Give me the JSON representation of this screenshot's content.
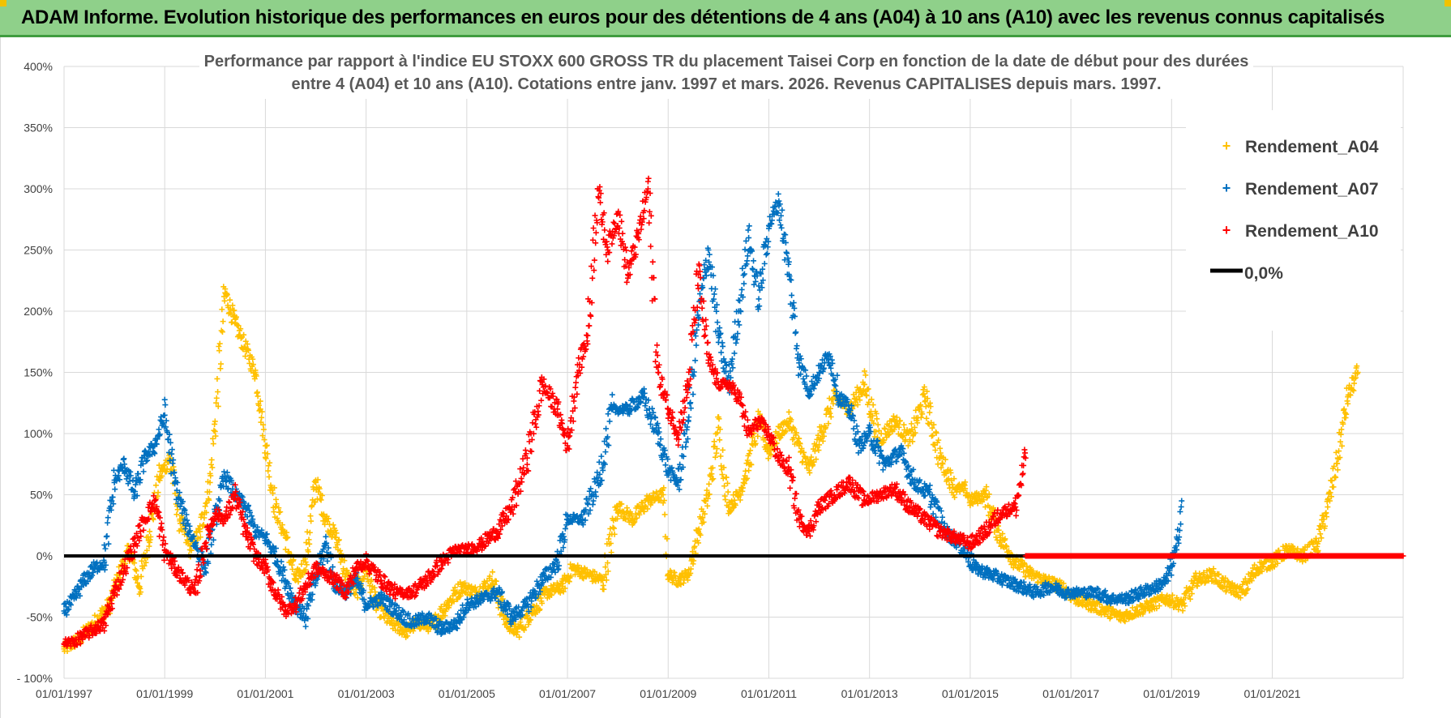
{
  "banner": {
    "title": "ADAM Informe. Evolution historique des performances en euros pour des détentions de 4 ans (A04) à 10 ans (A10) avec les revenus connus capitalisés"
  },
  "colors": {
    "banner_bg": "#8fd08a",
    "series_A04": "#ffc000",
    "series_A07": "#0070c0",
    "series_A10": "#ff0000",
    "zero_line": "#000000",
    "grid": "#d9d9d9"
  },
  "chart_data": {
    "type": "scatter",
    "title_lines": [
      "Performance par rapport à l'indice EU STOXX 600 GROSS TR  du placement Taisei Corp en fonction de la date de début pour des durées",
      "entre 4 (A04) et 10 ans (A10).  Cotations entre janv. 1997 et mars. 2026.  Revenus CAPITALISES depuis mars. 1997."
    ],
    "x_tick_labels": [
      "01/01/1997",
      "01/01/1999",
      "01/01/2001",
      "01/01/2003",
      "01/01/2005",
      "01/01/2007",
      "01/01/2009",
      "01/01/2011",
      "01/01/2013",
      "01/01/2015",
      "01/01/2017",
      "01/01/2019",
      "01/01/2021"
    ],
    "y_tick_labels": [
      "- 100%",
      "-50%",
      "0%",
      "50%",
      "100%",
      "150%",
      "200%",
      "250%",
      "300%",
      "350%",
      "400%"
    ],
    "xlim": [
      1997.0,
      2023.6
    ],
    "ylim": [
      -100,
      400
    ],
    "legend": {
      "placement": "top-right",
      "entries": [
        "Rendement_A04",
        "Rendement_A07",
        "Rendement_A10",
        "0,0%"
      ]
    },
    "series": [
      {
        "name": "Rendement_A04",
        "color": "#ffc000",
        "x": [
          1997.0,
          1997.3,
          1997.6,
          1997.9,
          1998.1,
          1998.3,
          1998.5,
          1998.7,
          1998.9,
          1999.1,
          1999.3,
          1999.5,
          1999.7,
          1999.9,
          2000.0,
          2000.2,
          2000.4,
          2000.6,
          2000.8,
          2000.9,
          2001.0,
          2001.2,
          2001.4,
          2001.6,
          2001.8,
          2002.0,
          2002.2,
          2002.4,
          2002.6,
          2002.8,
          2003.0,
          2003.2,
          2003.5,
          2003.8,
          2004.0,
          2004.3,
          2004.6,
          2004.9,
          2005.2,
          2005.5,
          2005.8,
          2006.0,
          2006.3,
          2006.6,
          2006.9,
          2007.1,
          2007.4,
          2007.7,
          2008.0,
          2008.3,
          2008.6,
          2008.9,
          2009.0,
          2009.2,
          2009.4,
          2009.6,
          2009.8,
          2010.0,
          2010.2,
          2010.4,
          2010.6,
          2010.8,
          2011.0,
          2011.2,
          2011.4,
          2011.6,
          2011.8,
          2012.0,
          2012.3,
          2012.6,
          2012.9,
          2013.2,
          2013.5,
          2013.8,
          2014.1,
          2014.4,
          2014.7,
          2014.9,
          2015.0,
          2015.3,
          2015.6,
          2015.9,
          2016.2,
          2016.5,
          2016.8,
          2017.1,
          2017.4,
          2017.7,
          2018.0,
          2018.3,
          2018.6,
          2018.9,
          2019.2,
          2019.5,
          2019.8,
          2020.1,
          2020.4,
          2020.7,
          2021.0,
          2021.3,
          2021.6,
          2021.9,
          2022.1,
          2022.3,
          2022.5,
          2022.7
        ],
        "y": [
          -76,
          -68,
          -55,
          -40,
          -15,
          5,
          -25,
          20,
          65,
          80,
          30,
          5,
          20,
          60,
          110,
          215,
          190,
          170,
          150,
          120,
          90,
          40,
          15,
          -20,
          -5,
          60,
          30,
          15,
          -15,
          -30,
          -10,
          -40,
          -55,
          -62,
          -55,
          -58,
          -40,
          -25,
          -30,
          -20,
          -55,
          -62,
          -45,
          -30,
          -25,
          -10,
          -15,
          -20,
          40,
          30,
          45,
          50,
          -15,
          -20,
          -15,
          20,
          50,
          105,
          40,
          50,
          75,
          110,
          85,
          100,
          110,
          90,
          70,
          95,
          130,
          120,
          140,
          95,
          110,
          95,
          130,
          80,
          55,
          55,
          45,
          50,
          15,
          -5,
          -15,
          -20,
          -25,
          -35,
          -40,
          -45,
          -50,
          -45,
          -40,
          -35,
          -40,
          -20,
          -15,
          -25,
          -30,
          -10,
          -5,
          5,
          0,
          10,
          40,
          80,
          130,
          150
        ]
      },
      {
        "name": "Rendement_A07",
        "color": "#0070c0",
        "x": [
          1997.0,
          1997.2,
          1997.4,
          1997.6,
          1997.8,
          1998.0,
          1998.2,
          1998.4,
          1998.6,
          1998.8,
          1999.0,
          1999.2,
          1999.4,
          1999.6,
          1999.8,
          2000.0,
          2000.2,
          2000.4,
          2000.6,
          2000.8,
          2001.0,
          2001.2,
          2001.4,
          2001.6,
          2001.8,
          2002.0,
          2002.2,
          2002.4,
          2002.6,
          2002.8,
          2003.0,
          2003.3,
          2003.6,
          2003.9,
          2004.2,
          2004.5,
          2004.8,
          2005.0,
          2005.3,
          2005.6,
          2005.9,
          2006.2,
          2006.5,
          2006.8,
          2007.0,
          2007.3,
          2007.6,
          2007.9,
          2008.2,
          2008.5,
          2008.8,
          2009.0,
          2009.2,
          2009.4,
          2009.6,
          2009.8,
          2010.0,
          2010.2,
          2010.4,
          2010.6,
          2010.8,
          2011.0,
          2011.2,
          2011.4,
          2011.6,
          2011.8,
          2012.0,
          2012.2,
          2012.4,
          2012.6,
          2012.8,
          2013.0,
          2013.3,
          2013.6,
          2013.9,
          2014.2,
          2014.5,
          2014.8,
          2015.1,
          2015.4,
          2015.7,
          2016.0,
          2016.3,
          2016.6,
          2016.9,
          2017.2,
          2017.5,
          2017.8,
          2018.1,
          2018.4,
          2018.7,
          2018.9,
          2019.1,
          2019.2
        ],
        "y": [
          -45,
          -35,
          -20,
          -10,
          -5,
          60,
          75,
          50,
          80,
          90,
          115,
          60,
          30,
          10,
          -10,
          30,
          65,
          50,
          40,
          20,
          15,
          0,
          -20,
          -40,
          -50,
          -20,
          10,
          -25,
          -30,
          -20,
          -40,
          -35,
          -45,
          -55,
          -50,
          -60,
          -55,
          -40,
          -35,
          -30,
          -50,
          -40,
          -20,
          -5,
          30,
          30,
          60,
          120,
          120,
          130,
          100,
          70,
          60,
          110,
          195,
          250,
          180,
          140,
          200,
          260,
          210,
          270,
          290,
          230,
          160,
          135,
          150,
          165,
          130,
          120,
          90,
          100,
          75,
          85,
          60,
          50,
          20,
          10,
          -10,
          -15,
          -20,
          -25,
          -30,
          -25,
          -30,
          -30,
          -30,
          -35,
          -35,
          -30,
          -25,
          -20,
          5,
          45
        ]
      },
      {
        "name": "Rendement_A10",
        "color": "#ff0000",
        "x": [
          1997.0,
          1997.2,
          1997.4,
          1997.6,
          1997.8,
          1998.0,
          1998.2,
          1998.4,
          1998.6,
          1998.8,
          1999.0,
          1999.2,
          1999.4,
          1999.6,
          1999.8,
          2000.0,
          2000.2,
          2000.4,
          2000.6,
          2000.8,
          2001.0,
          2001.2,
          2001.4,
          2001.6,
          2001.8,
          2002.0,
          2002.2,
          2002.4,
          2002.6,
          2002.8,
          2003.0,
          2003.3,
          2003.6,
          2003.9,
          2004.2,
          2004.5,
          2004.8,
          2005.0,
          2005.3,
          2005.6,
          2005.9,
          2006.2,
          2006.5,
          2006.8,
          2007.0,
          2007.2,
          2007.4,
          2007.6,
          2007.8,
          2008.0,
          2008.2,
          2008.4,
          2008.6,
          2008.8,
          2009.0,
          2009.2,
          2009.4,
          2009.6,
          2009.8,
          2010.0,
          2010.2,
          2010.4,
          2010.6,
          2010.8,
          2011.0,
          2011.2,
          2011.4,
          2011.6,
          2011.8,
          2012.0,
          2012.3,
          2012.6,
          2012.9,
          2013.2,
          2013.5,
          2013.8,
          2014.1,
          2014.4,
          2014.7,
          2015.0,
          2015.3,
          2015.6,
          2015.9,
          2016.1
        ],
        "y": [
          -72,
          -70,
          -65,
          -60,
          -55,
          -30,
          -10,
          10,
          30,
          45,
          5,
          -10,
          -20,
          -30,
          10,
          35,
          30,
          50,
          20,
          0,
          -10,
          -30,
          -45,
          -40,
          -25,
          -10,
          -15,
          -20,
          -30,
          -10,
          -5,
          -20,
          -30,
          -30,
          -20,
          -5,
          5,
          5,
          10,
          20,
          40,
          80,
          140,
          120,
          90,
          150,
          180,
          300,
          250,
          280,
          230,
          260,
          300,
          150,
          120,
          100,
          140,
          230,
          160,
          140,
          140,
          130,
          100,
          110,
          100,
          80,
          70,
          30,
          20,
          40,
          50,
          60,
          45,
          50,
          55,
          40,
          30,
          20,
          15,
          10,
          20,
          35,
          40,
          80
        ]
      }
    ],
    "zero_line": {
      "name": "0,0%",
      "y": 0,
      "x_range": [
        1997.0,
        2023.6
      ]
    },
    "a10_zero_segment": {
      "y": 0,
      "x_range": [
        2016.1,
        2023.6
      ]
    }
  }
}
